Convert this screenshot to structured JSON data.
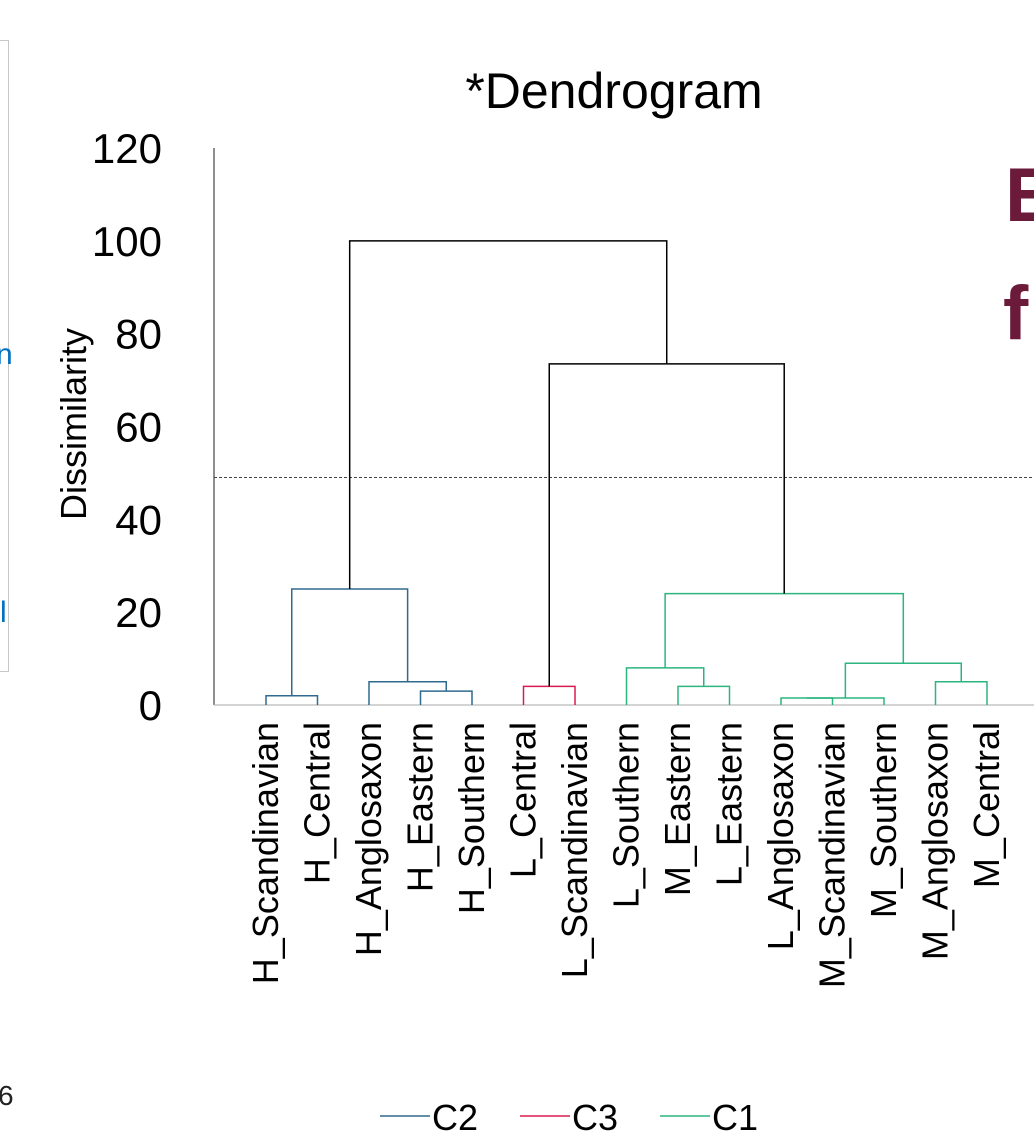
{
  "fragments": {
    "left_blue_1": "n",
    "left_blue_2": "l",
    "left_number": "6",
    "right_big_1": "E",
    "right_big_2": "f"
  },
  "chart_data": {
    "type": "dendrogram",
    "title": "*Dendrogram",
    "ylabel": "Dissimilarity",
    "xlabel": "",
    "ylim": [
      0,
      120
    ],
    "yticks": [
      0,
      20,
      40,
      60,
      80,
      100,
      120
    ],
    "grid": false,
    "truncation_line": 49,
    "legend_position": "bottom",
    "clusters": [
      {
        "name": "C2",
        "color": "#2e6b8f"
      },
      {
        "name": "C3",
        "color": "#d81b50"
      },
      {
        "name": "C1",
        "color": "#2bb57f"
      }
    ],
    "leaves": [
      "H_Scandinavian",
      "H_Central",
      "H_Anglosaxon",
      "H_Eastern",
      "H_Southern",
      "L_Central",
      "L_Scandinavian",
      "L_Southern",
      "M_Eastern",
      "L_Eastern",
      "L_Anglosaxon",
      "M_Scandinavian",
      "M_Southern",
      "M_Anglosaxon",
      "M_Central"
    ],
    "merges": [
      {
        "a": "H_Scandinavian",
        "b": "H_Central",
        "height": 2,
        "cluster": "C2"
      },
      {
        "a": "H_Eastern",
        "b": "H_Southern",
        "height": 3,
        "cluster": "C2"
      },
      {
        "a": "H_Anglosaxon",
        "b": "H_Eastern+H_Southern",
        "height": 5,
        "cluster": "C2"
      },
      {
        "a": "H_Scandinavian+H_Central",
        "b": "H_Anglosaxon+H_Eastern+H_Southern",
        "height": 25,
        "cluster": "C2"
      },
      {
        "a": "L_Central",
        "b": "L_Scandinavian",
        "height": 4,
        "cluster": "C3"
      },
      {
        "a": "M_Eastern",
        "b": "L_Eastern",
        "height": 4,
        "cluster": "C1"
      },
      {
        "a": "L_Southern",
        "b": "M_Eastern+L_Eastern",
        "height": 8,
        "cluster": "C1"
      },
      {
        "a": "L_Anglosaxon",
        "b": "M_Scandinavian",
        "height": 1.5,
        "cluster": "C1"
      },
      {
        "a": "L_Anglosaxon+M_Scandinavian",
        "b": "M_Southern",
        "height": 1.5,
        "cluster": "C1"
      },
      {
        "a": "M_Anglosaxon",
        "b": "M_Central",
        "height": 5,
        "cluster": "C1"
      },
      {
        "a": "L_Anglosaxon+M_Scandinavian+M_Southern",
        "b": "M_Anglosaxon+M_Central",
        "height": 9,
        "cluster": "C1"
      },
      {
        "a": "L_Southern+M_Eastern+L_Eastern",
        "b": "L_Anglosaxon+M_Scandinavian+M_Southern+M_Anglosaxon+M_Central",
        "height": 24,
        "cluster": "C1"
      },
      {
        "a": "C3",
        "b": "C1",
        "height": 73.5,
        "cluster": "root"
      },
      {
        "a": "C2",
        "b": "C3+C1",
        "height": 100,
        "cluster": "root"
      }
    ]
  }
}
